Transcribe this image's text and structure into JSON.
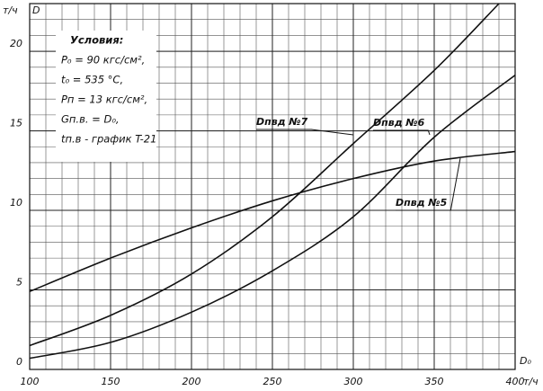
{
  "chart_data": {
    "type": "line",
    "y_axis_label": "т/ч",
    "y_axis_symbol": "D",
    "x_axis_label": "т/ч",
    "x_axis_symbol": "D₀",
    "conditions": [
      "Условия:",
      "P₀ = 90 кгс/см²,",
      "t₀ = 535 °C,",
      "Pп = 13 кгс/см²,",
      "Gп.в. = D₀,",
      "tп.в - график T-21"
    ],
    "x": [
      100,
      150,
      200,
      250,
      300,
      350,
      400
    ],
    "series": [
      {
        "name": "Dпвд №7",
        "color": "#111",
        "x": [
          100,
          150,
          200,
          250,
          300,
          350,
          390
        ],
        "values": [
          1.5,
          3.4,
          6.0,
          9.6,
          14.2,
          18.8,
          23
        ]
      },
      {
        "name": "Dпвд №6",
        "color": "#111",
        "x": [
          100,
          150,
          200,
          250,
          300,
          350,
          400
        ],
        "values": [
          0.7,
          1.7,
          3.6,
          6.2,
          9.6,
          14.6,
          18.5
        ]
      },
      {
        "name": "Dпвд №5",
        "color": "#111",
        "x": [
          100,
          150,
          200,
          250,
          300,
          350,
          400
        ],
        "values": [
          4.9,
          7.0,
          8.9,
          10.6,
          12.0,
          13.1,
          13.7
        ]
      }
    ],
    "xlim": [
      100,
      400
    ],
    "ylim": [
      0,
      23
    ],
    "xticks": [
      100,
      150,
      200,
      250,
      300,
      350,
      400
    ],
    "yticks": [
      0,
      5,
      10,
      15,
      20
    ],
    "grid": true
  }
}
